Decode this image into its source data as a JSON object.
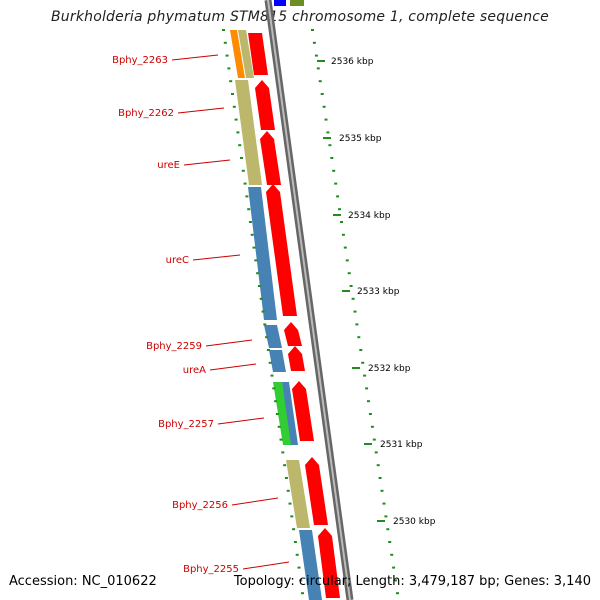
{
  "title": "Burkholderia phymatum STM815 chromosome 1, complete sequence",
  "footer": {
    "accession": "Accession: NC_010622",
    "summary": "Topology: circular; Length: 3,479,187 bp; Genes: 3,140"
  },
  "colors": {
    "cds_red": "#ff0000",
    "ure_blue": "#4682b4",
    "khaki": "#bdb76b",
    "green": "#32cd32",
    "orange": "#ff8c00",
    "tick_green": "#228b22",
    "backbone": "#888888",
    "label_red": "#cc0000"
  },
  "genes": [
    {
      "name": "Bphy_2263",
      "color": "khaki"
    },
    {
      "name": "Bphy_2262",
      "color": "khaki"
    },
    {
      "name": "ureE",
      "color": "khaki"
    },
    {
      "name": "ureC",
      "color": "ure_blue"
    },
    {
      "name": "Bphy_2259",
      "color": "ure_blue"
    },
    {
      "name": "ureA",
      "color": "ure_blue"
    },
    {
      "name": "Bphy_2257",
      "color": "green"
    },
    {
      "name": "Bphy_2256",
      "color": "khaki"
    },
    {
      "name": "Bphy_2255",
      "color": "ure_blue"
    }
  ],
  "scale_labels": [
    "2536 kbp",
    "2535 kbp",
    "2534 kbp",
    "2533 kbp",
    "2532 kbp",
    "2531 kbp",
    "2530 kbp"
  ]
}
